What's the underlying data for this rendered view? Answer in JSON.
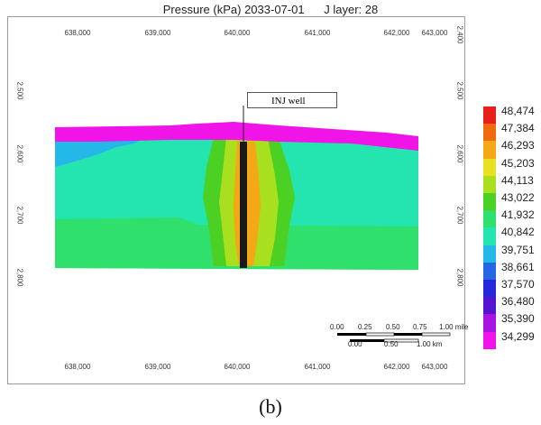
{
  "title": "Pressure (kPa) 2033-07-01      J layer: 28",
  "caption": "(b)",
  "well_label": "INJ well",
  "x_axis": {
    "top_ticks": [
      "638,000",
      "639,000",
      "640,000",
      "641,000",
      "642,000",
      "643,000"
    ],
    "bottom_ticks": [
      "638,000",
      "639,000",
      "640,000",
      "641,000",
      "642,000",
      "643,000"
    ],
    "range": [
      637500,
      643250
    ]
  },
  "y_axis": {
    "left_ticks": [
      "2,500",
      "2,600",
      "2,700",
      "2,800"
    ],
    "right_ticks": [
      "2,400",
      "2,500",
      "2,600",
      "2,700",
      "2,800"
    ],
    "range": [
      2360,
      2910
    ]
  },
  "legend": {
    "values": [
      "48,474",
      "47,384",
      "46,293",
      "45,203",
      "44,113",
      "43,022",
      "41,932",
      "40,842",
      "39,751",
      "38,661",
      "37,570",
      "36,480",
      "35,390",
      "34,299"
    ],
    "colors": [
      "#e8201c",
      "#f06a10",
      "#f4a814",
      "#e8e020",
      "#a8e020",
      "#4cd024",
      "#30e06c",
      "#24e4b0",
      "#24b8e8",
      "#2466e4",
      "#2428d8",
      "#5414d0",
      "#a814e0",
      "#f014e8"
    ]
  },
  "scale_bar": {
    "miles_labels": [
      "0.00",
      "0.25",
      "0.50",
      "0.75",
      "1.00 mile"
    ],
    "km_labels": [
      "0.00",
      "0.50",
      "1.00 km"
    ]
  },
  "colors": {
    "cap": "#f014e8",
    "body": "#24e4b0",
    "body_lower": "#30e06c",
    "left_low": "#24b8e8",
    "plume_outer": "#4cd024",
    "plume_mid": "#a8e020",
    "plume_inner": "#f4a814",
    "well": "#1a1a1a"
  }
}
